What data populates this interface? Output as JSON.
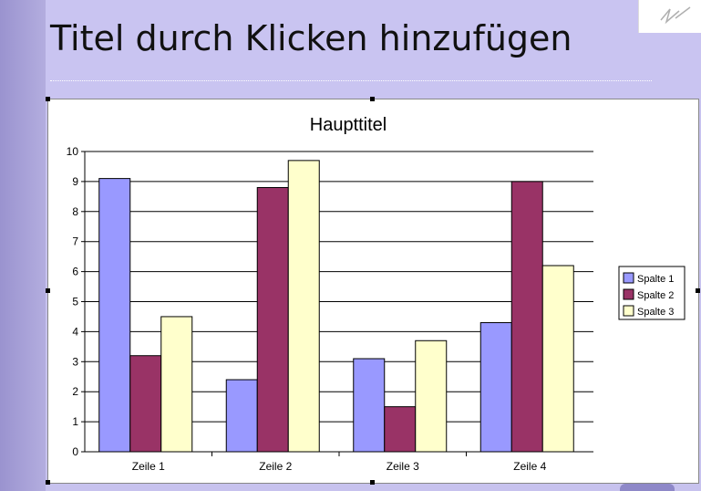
{
  "slide": {
    "title": "Titel durch Klicken hinzufügen"
  },
  "chart_data": {
    "type": "bar",
    "title": "Haupttitel",
    "categories": [
      "Zeile 1",
      "Zeile 2",
      "Zeile 3",
      "Zeile 4"
    ],
    "series": [
      {
        "name": "Spalte 1",
        "color": "#9999ff",
        "values": [
          9.1,
          2.4,
          3.1,
          4.3
        ]
      },
      {
        "name": "Spalte 2",
        "color": "#993366",
        "values": [
          3.2,
          8.8,
          1.5,
          9.0
        ]
      },
      {
        "name": "Spalte 3",
        "color": "#ffffcc",
        "values": [
          4.5,
          9.7,
          3.7,
          6.2
        ]
      }
    ],
    "ylim": [
      0,
      10
    ],
    "yticks": [
      "0",
      "1",
      "2",
      "3",
      "4",
      "5",
      "6",
      "7",
      "8",
      "9",
      "10"
    ],
    "grid": true,
    "legend": "right"
  }
}
